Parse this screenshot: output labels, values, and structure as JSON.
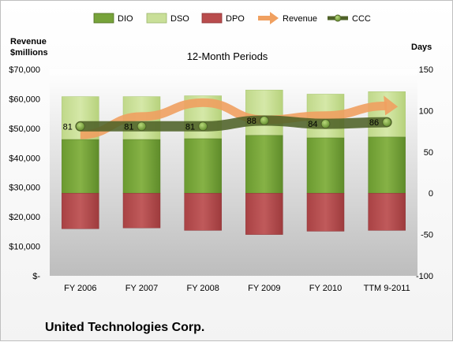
{
  "chart_data": {
    "type": "bar",
    "title": "12-Month Periods",
    "company": "United Technologies Corp.",
    "left_axis_label_line1": "Revenue",
    "left_axis_label_line2": "$millions",
    "right_axis_label": "Days",
    "categories": [
      "FY 2006",
      "FY 2007",
      "FY 2008",
      "FY 2009",
      "FY 2010",
      "TTM 9-2011"
    ],
    "left_axis": {
      "min": 0,
      "max": 70000,
      "step": 10000,
      "tick_labels": [
        "$-",
        "$10,000",
        "$20,000",
        "$30,000",
        "$40,000",
        "$50,000",
        "$60,000",
        "$70,000"
      ]
    },
    "right_axis": {
      "min": -100,
      "max": 150,
      "step": 50,
      "tick_labels": [
        "-100",
        "-50",
        "0",
        "50",
        "100",
        "150"
      ]
    },
    "legend_position": "top",
    "grid": false,
    "series": [
      {
        "name": "DIO",
        "axis": "right",
        "kind": "stacked-bar",
        "color": "#77a33a",
        "values": [
          65,
          65,
          66,
          70,
          67,
          68
        ]
      },
      {
        "name": "DSO",
        "axis": "right",
        "kind": "stacked-bar",
        "color": "#c9df98",
        "values": [
          52,
          52,
          52,
          55,
          53,
          55
        ]
      },
      {
        "name": "DPO",
        "axis": "right",
        "kind": "negative-bar",
        "color": "#b94c4d",
        "values": [
          -43,
          -42,
          -45,
          -50,
          -46,
          -45
        ]
      },
      {
        "name": "Revenue",
        "axis": "left",
        "kind": "arrow-line",
        "color": "#f0a060",
        "values": [
          47800,
          54000,
          58700,
          52900,
          54300,
          57600
        ]
      },
      {
        "name": "CCC",
        "axis": "right",
        "kind": "line-markers",
        "color": "#4f6228",
        "marker_color": "#7ba33c",
        "values": [
          81,
          81,
          81,
          88,
          84,
          86
        ]
      }
    ],
    "data_labels": [
      "81",
      "81",
      "81",
      "88",
      "84",
      "86"
    ]
  }
}
